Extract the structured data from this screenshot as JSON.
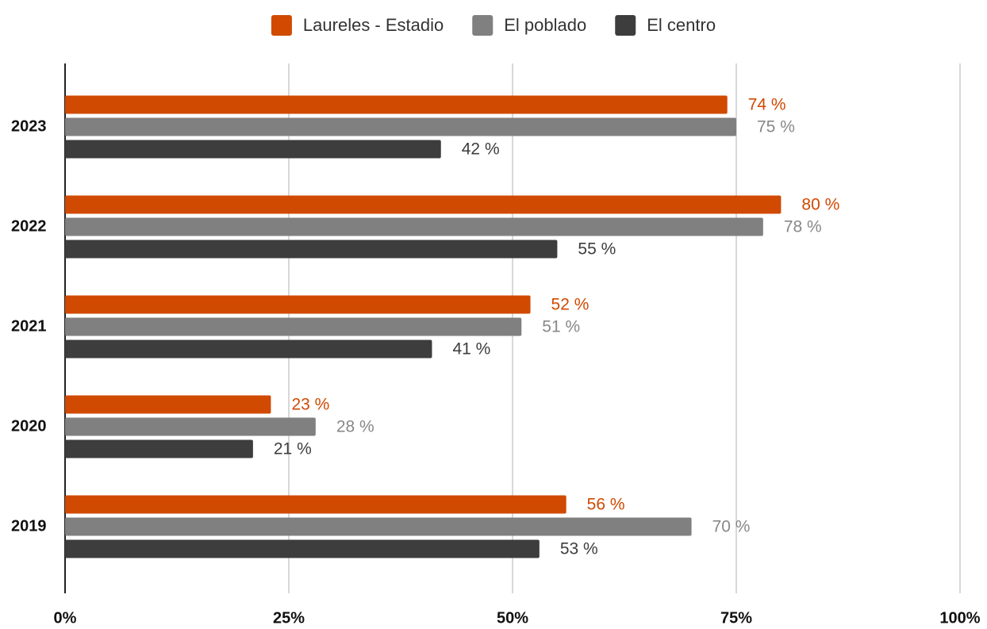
{
  "chart_data": {
    "type": "barh",
    "categories": [
      "2023",
      "2022",
      "2021",
      "2020",
      "2019"
    ],
    "series": [
      {
        "name": "Laureles - Estadio",
        "color": "#d04a02",
        "values": [
          74,
          80,
          52,
          23,
          56
        ],
        "value_labels": [
          "74  %",
          "80 %",
          "52 %",
          "23 %",
          "56 %"
        ]
      },
      {
        "name": "El poblado",
        "color": "#808080",
        "values": [
          75,
          78,
          51,
          28,
          70
        ],
        "value_labels": [
          "75 %",
          "78 %",
          "51 %",
          "28 %",
          "70 %"
        ]
      },
      {
        "name": "El centro",
        "color": "#3d3d3d",
        "values": [
          42,
          55,
          41,
          21,
          53
        ],
        "value_labels": [
          "42 %",
          "55 %",
          "41 %",
          "21 %",
          "53 %"
        ]
      }
    ],
    "xlim": [
      0,
      100
    ],
    "xticks": [
      {
        "value": 0,
        "label": "0%"
      },
      {
        "value": 25,
        "label": "25%"
      },
      {
        "value": 50,
        "label": "50%"
      },
      {
        "value": 75,
        "label": "75%"
      },
      {
        "value": 100,
        "label": "100%"
      }
    ],
    "grid": true,
    "legend": "top"
  }
}
